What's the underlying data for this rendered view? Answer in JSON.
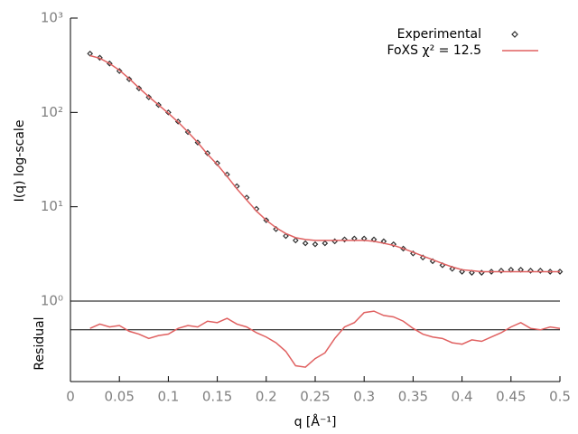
{
  "chart_data": [
    {
      "type": "line",
      "ylabel": "I(q) log-scale",
      "log_y": true,
      "legend": "upper right",
      "xlim": [
        0,
        0.5
      ],
      "ylim": [
        1,
        1000
      ],
      "yticks": [
        {
          "value": 1,
          "label": "10⁰"
        },
        {
          "value": 10,
          "label": "10¹"
        },
        {
          "value": 100,
          "label": "10²"
        },
        {
          "value": 1000,
          "label": "10³"
        }
      ],
      "x": [
        0.02,
        0.03,
        0.04,
        0.05,
        0.06,
        0.07,
        0.08,
        0.09,
        0.1,
        0.11,
        0.12,
        0.13,
        0.14,
        0.15,
        0.16,
        0.17,
        0.18,
        0.19,
        0.2,
        0.21,
        0.22,
        0.23,
        0.24,
        0.25,
        0.26,
        0.27,
        0.28,
        0.29,
        0.3,
        0.31,
        0.32,
        0.33,
        0.34,
        0.35,
        0.36,
        0.37,
        0.38,
        0.39,
        0.4,
        0.41,
        0.42,
        0.43,
        0.44,
        0.45,
        0.46,
        0.47,
        0.48,
        0.49,
        0.5
      ],
      "series": [
        {
          "name": "Experimental",
          "style": "points",
          "color": "#303030",
          "values": [
            420,
            380,
            330,
            275,
            225,
            180,
            145,
            120,
            100,
            80,
            62,
            48,
            37,
            29,
            22,
            16.5,
            12.5,
            9.5,
            7.2,
            5.8,
            4.9,
            4.4,
            4.1,
            4.0,
            4.1,
            4.3,
            4.5,
            4.6,
            4.6,
            4.5,
            4.3,
            4.0,
            3.6,
            3.2,
            2.9,
            2.65,
            2.4,
            2.2,
            2.05,
            2.0,
            2.0,
            2.05,
            2.1,
            2.15,
            2.15,
            2.1,
            2.1,
            2.05,
            2.05
          ]
        },
        {
          "name": "FoXS χ² = 12.5",
          "style": "line",
          "color": "#e06060",
          "values": [
            400,
            375,
            330,
            280,
            228,
            182,
            147,
            120,
            98,
            79,
            62,
            48,
            36,
            28,
            21,
            15.5,
            11.8,
            9.0,
            7.2,
            6.0,
            5.2,
            4.7,
            4.5,
            4.4,
            4.4,
            4.4,
            4.4,
            4.4,
            4.4,
            4.3,
            4.1,
            3.9,
            3.6,
            3.3,
            3.0,
            2.75,
            2.5,
            2.3,
            2.15,
            2.1,
            2.05,
            2.05,
            2.05,
            2.05,
            2.05,
            2.05,
            2.05,
            2.05,
            2.05
          ]
        }
      ]
    },
    {
      "type": "line",
      "ylabel": "Residual",
      "xlabel": "q [Å⁻¹]",
      "log_y": false,
      "xlim": [
        0,
        0.5
      ],
      "xticks": [
        0,
        0.05,
        0.1,
        0.15,
        0.2,
        0.25,
        0.3,
        0.35,
        0.4,
        0.45,
        0.5
      ],
      "ylim": [
        -3.6,
        2
      ],
      "x": [
        0.02,
        0.03,
        0.04,
        0.05,
        0.06,
        0.07,
        0.08,
        0.09,
        0.1,
        0.11,
        0.12,
        0.13,
        0.14,
        0.15,
        0.16,
        0.17,
        0.18,
        0.19,
        0.2,
        0.21,
        0.22,
        0.23,
        0.24,
        0.25,
        0.26,
        0.27,
        0.28,
        0.29,
        0.3,
        0.31,
        0.32,
        0.33,
        0.34,
        0.35,
        0.36,
        0.37,
        0.38,
        0.39,
        0.4,
        0.41,
        0.42,
        0.43,
        0.44,
        0.45,
        0.46,
        0.47,
        0.48,
        0.49,
        0.5
      ],
      "series": [
        {
          "name": "Residual",
          "style": "line",
          "color": "#e06060",
          "values": [
            0.1,
            0.4,
            0.2,
            0.3,
            -0.1,
            -0.3,
            -0.6,
            -0.4,
            -0.3,
            0.1,
            0.3,
            0.2,
            0.6,
            0.5,
            0.8,
            0.4,
            0.2,
            -0.2,
            -0.5,
            -0.9,
            -1.5,
            -2.5,
            -2.6,
            -2.0,
            -1.6,
            -0.6,
            0.2,
            0.5,
            1.2,
            1.3,
            1.0,
            0.9,
            0.6,
            0.1,
            -0.3,
            -0.5,
            -0.6,
            -0.9,
            -1.0,
            -0.7,
            -0.8,
            -0.5,
            -0.2,
            0.2,
            0.5,
            0.1,
            0.0,
            0.2,
            0.1
          ]
        }
      ]
    }
  ]
}
